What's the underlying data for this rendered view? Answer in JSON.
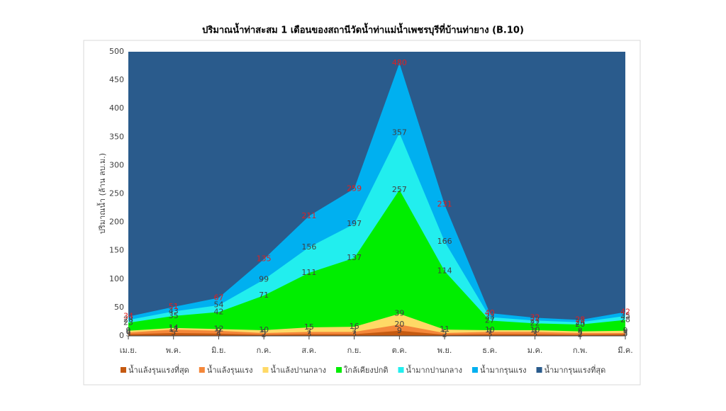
{
  "chart_data": {
    "type": "area",
    "title": "ปริมาณน้ำท่าสะสม 1 เดือนของสถานีวัดน้ำท่าแม่น้ำเพชรบุรีที่บ้านท่ายาง (B.10)",
    "y_label": "ปริมาณน้ำ (ล้าน ลบ.ม.)",
    "categories": [
      "เม.ย.",
      "พ.ค.",
      "มิ.ย.",
      "ก.ค.",
      "ส.ค.",
      "ก.ย.",
      "ต.ค.",
      "พ.ย.",
      "ธ.ค.",
      "ม.ค.",
      "ก.พ.",
      "มี.ค."
    ],
    "ylim": [
      0,
      500
    ],
    "yticks": [
      0,
      50,
      100,
      150,
      200,
      250,
      300,
      350,
      400,
      450,
      500
    ],
    "series": [
      {
        "name": "น้ำแล้งรุนแรงที่สุด",
        "color": "#c55a11",
        "label_color": "#404040",
        "labels": true,
        "values": [
          3,
          5,
          4,
          2,
          3,
          3,
          9,
          2,
          3,
          3,
          2,
          3
        ]
      },
      {
        "name": "น้ำแล้งรุนแรง",
        "color": "#f4873a",
        "label_color": "#404040",
        "labels": true,
        "values": [
          6,
          11,
          9,
          5,
          7,
          7,
          20,
          5,
          7,
          7,
          5,
          5
        ]
      },
      {
        "name": "น้ำแล้งปานกลาง",
        "color": "#ffd966",
        "label_color": "#404040",
        "labels": true,
        "values": [
          9,
          14,
          12,
          10,
          15,
          16,
          39,
          11,
          10,
          10,
          8,
          9
        ]
      },
      {
        "name": "ใกล้เคียงปกติ",
        "color": "#00ee00",
        "label_color": "#404040",
        "labels": true,
        "values": [
          23,
          35,
          42,
          71,
          111,
          137,
          257,
          114,
          27,
          22,
          20,
          28
        ]
      },
      {
        "name": "น้ำมากปานกลาง",
        "color": "#22eeee",
        "label_color": "#404040",
        "labels": true,
        "values": [
          28,
          43,
          54,
          99,
          156,
          197,
          357,
          166,
          33,
          27,
          24,
          35
        ]
      },
      {
        "name": "น้ำมากรุนแรง",
        "color": "#00b0f0",
        "label_color": "#e02020",
        "labels": true,
        "values": [
          34,
          51,
          67,
          135,
          211,
          259,
          480,
          231,
          40,
          32,
          28,
          42
        ]
      },
      {
        "name": "น้ำมากรุนแรงที่สุด",
        "color": "#2a5b8c",
        "label_color": "#404040",
        "labels": false,
        "values": [
          500,
          500,
          500,
          500,
          500,
          500,
          500,
          500,
          500,
          500,
          500,
          500
        ]
      }
    ]
  }
}
